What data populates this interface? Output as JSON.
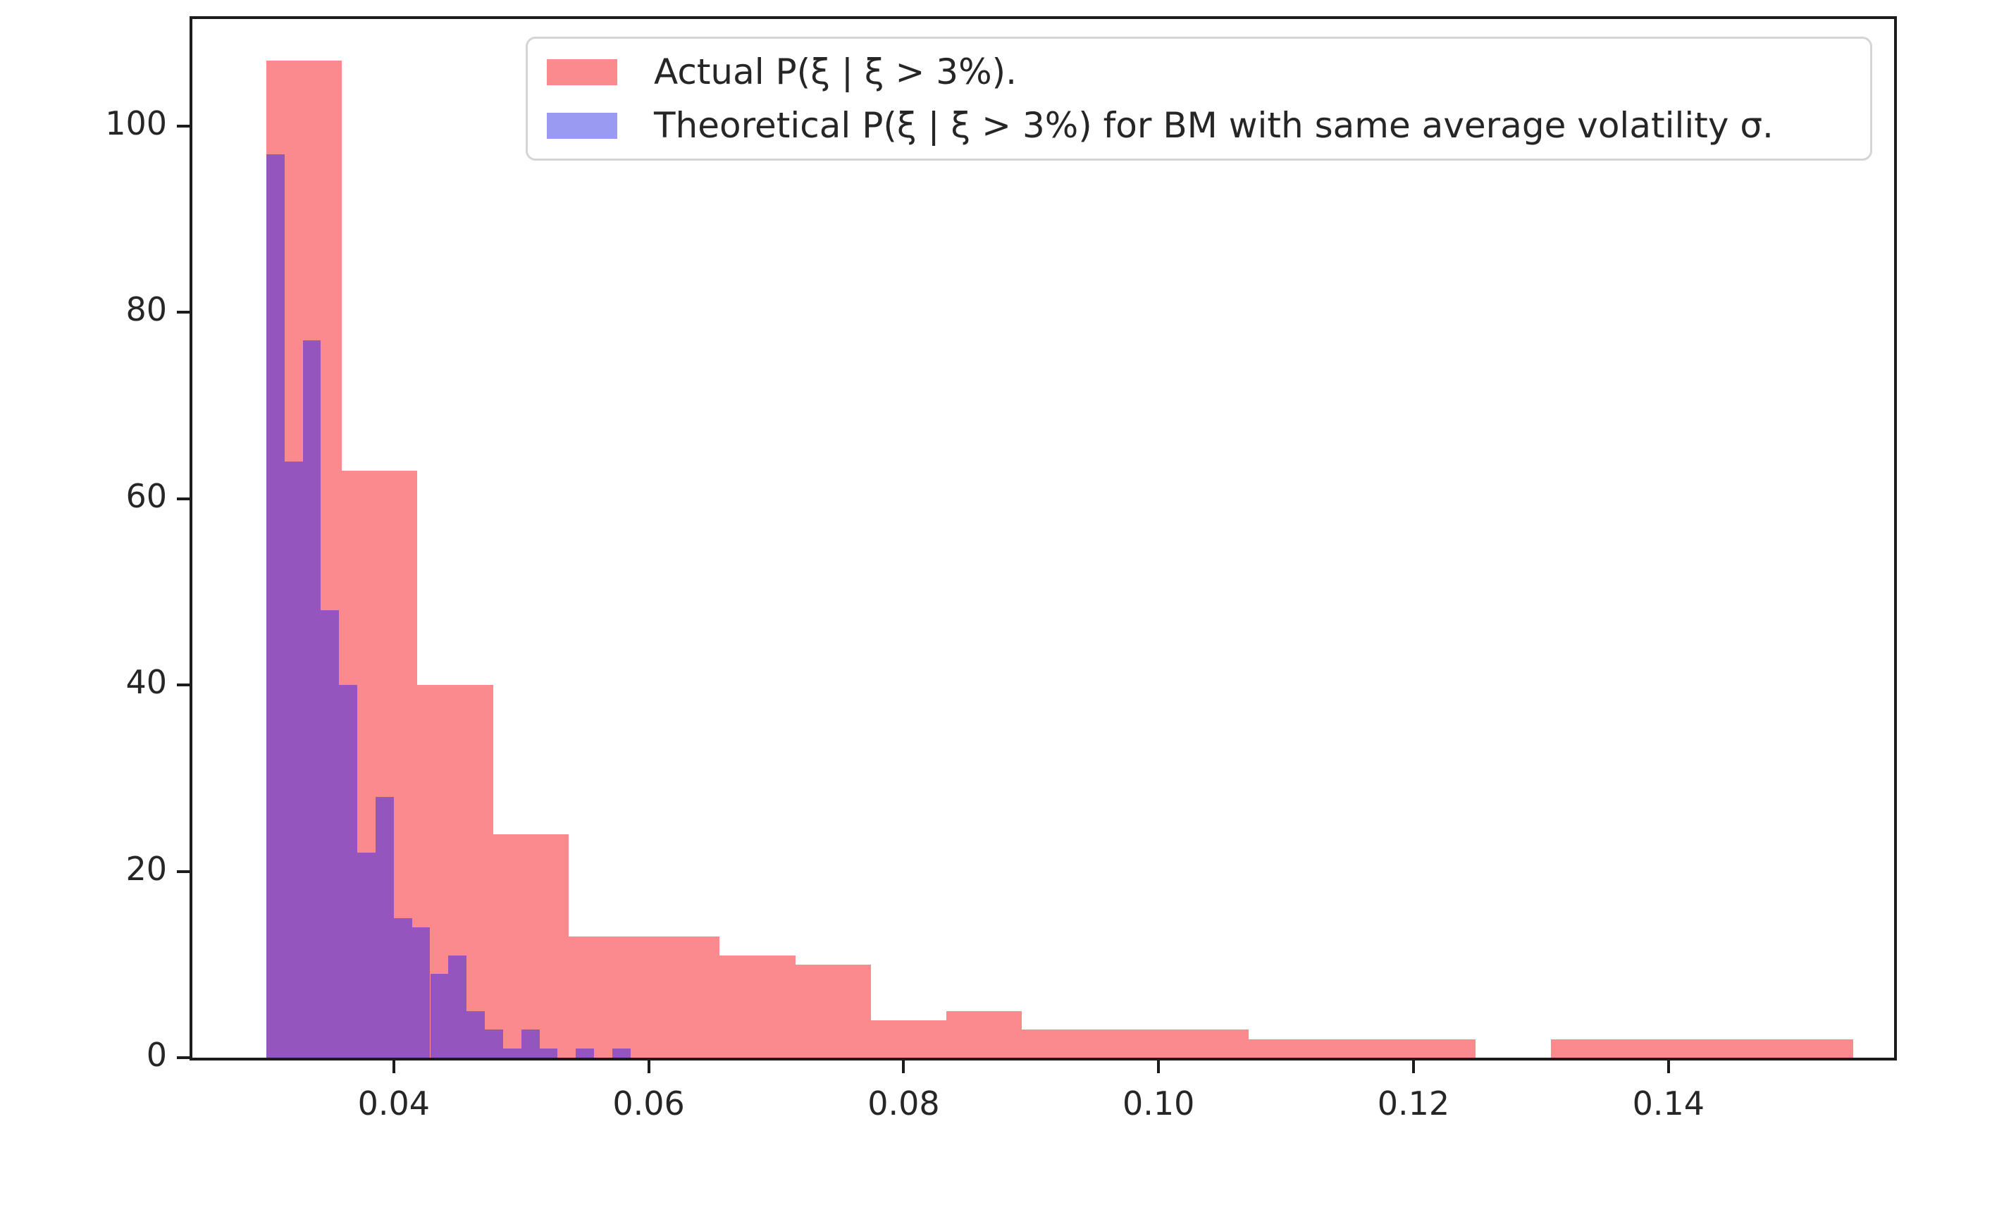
{
  "figure": {
    "background": "#ffffff",
    "spine_color": "#1c1c1c",
    "tick_label_color": "#262626"
  },
  "legend": {
    "items": [
      {
        "label": "Actual P(ξ | ξ > 3%).",
        "color": "#fa8a8d"
      },
      {
        "label": "Theoretical P(ξ | ξ > 3%) for BM with same average volatility σ.",
        "color": "#9a9af2"
      }
    ]
  },
  "chart_data": {
    "type": "bar",
    "subtype": "overlaid-histograms",
    "title": "",
    "xlabel": "",
    "ylabel": "",
    "grid": false,
    "legend_position": "upper center",
    "xlim": [
      0.0242,
      0.1577
    ],
    "ylim": [
      0,
      111.5
    ],
    "xticks": [
      0.04,
      0.06,
      0.08,
      0.1,
      0.12,
      0.14
    ],
    "xtick_labels": [
      "0.04",
      "0.06",
      "0.08",
      "0.10",
      "0.12",
      "0.14"
    ],
    "yticks": [
      0,
      20,
      40,
      60,
      80,
      100
    ],
    "ytick_labels": [
      "0",
      "20",
      "40",
      "60",
      "80",
      "100"
    ],
    "series": [
      {
        "name": "Actual P(ξ | ξ > 3%).",
        "color": "#fa8a8d",
        "bin_start": 0.03,
        "bin_width": 0.005928,
        "counts": [
          107,
          63,
          40,
          24,
          13,
          13,
          11,
          10,
          4,
          5,
          3,
          3,
          3,
          2,
          2,
          2,
          0,
          2,
          2,
          2,
          2
        ]
      },
      {
        "name": "Theoretical P(ξ | ξ > 3%) for BM with same average volatility σ.",
        "color": "#9a9af2",
        "render_color": "#9456be",
        "bin_start": 0.03,
        "bin_width": 0.0014286,
        "counts": [
          97,
          64,
          77,
          48,
          40,
          22,
          28,
          15,
          14,
          9,
          11,
          5,
          3,
          1,
          3,
          1,
          0,
          1,
          0,
          1,
          0
        ]
      }
    ]
  }
}
